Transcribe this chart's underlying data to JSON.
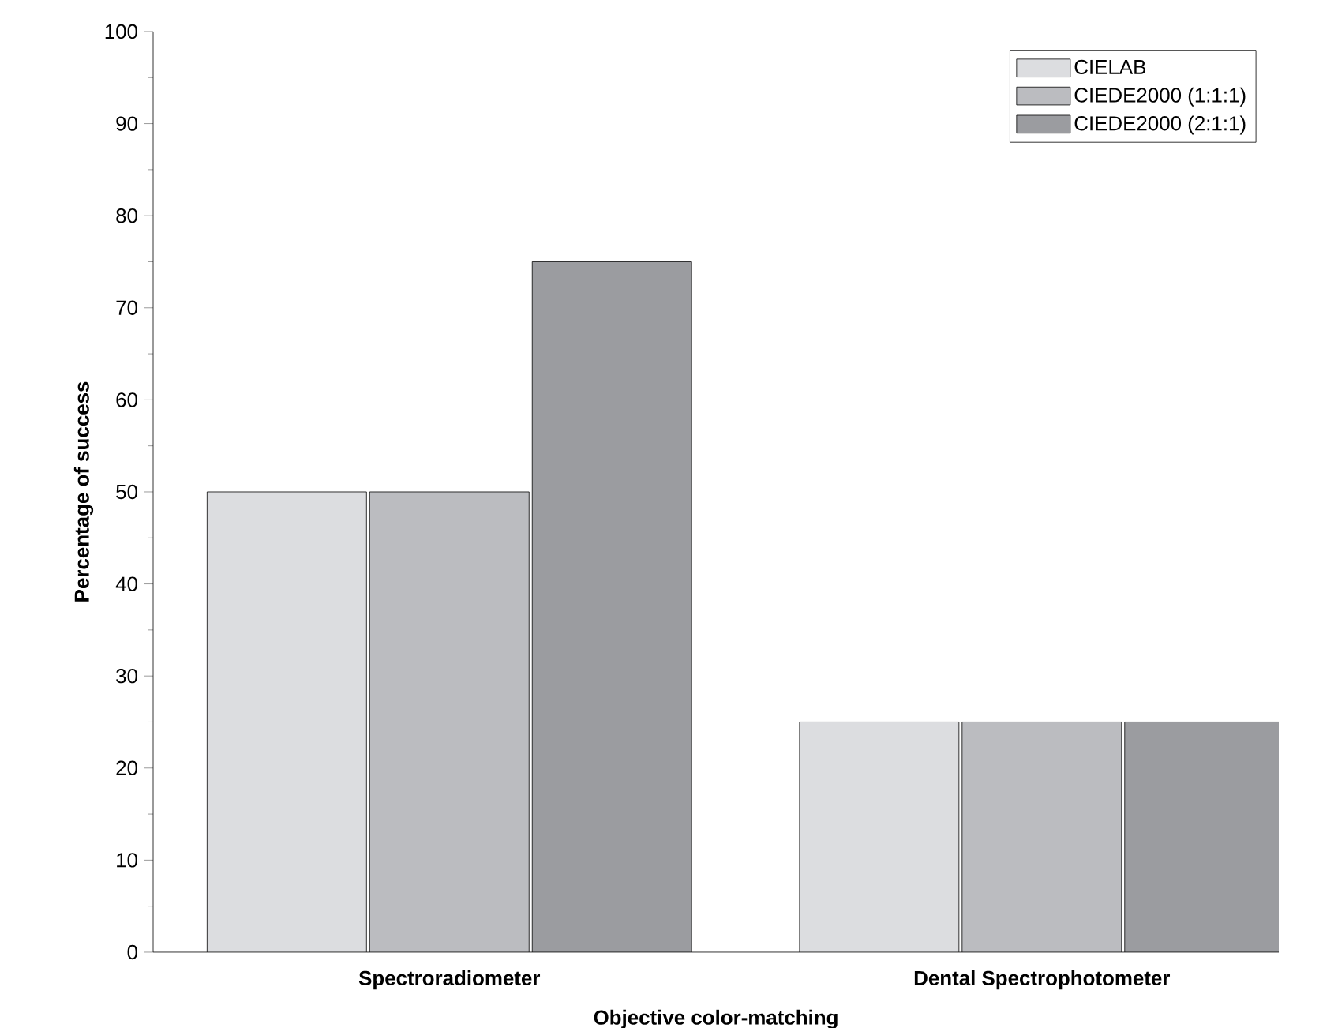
{
  "chart_data": {
    "type": "bar",
    "xlabel": "Objective color-matching",
    "ylabel": "Percentage of success",
    "categories": [
      "Spectroradiometer",
      "Dental Spectrophotometer"
    ],
    "series": [
      {
        "name": "CIELAB",
        "color": "#dcdde0",
        "values": [
          50,
          25
        ]
      },
      {
        "name": "CIEDE2000 (1:1:1)",
        "color": "#bbbcc0",
        "values": [
          50,
          25
        ]
      },
      {
        "name": "CIEDE2000 (2:1:1)",
        "color": "#9b9ca0",
        "values": [
          75,
          25
        ]
      }
    ],
    "ylim": [
      0,
      100
    ],
    "yticks": [
      0,
      10,
      20,
      30,
      40,
      50,
      60,
      70,
      80,
      90,
      100
    ],
    "legend": "top right",
    "grid": false
  }
}
